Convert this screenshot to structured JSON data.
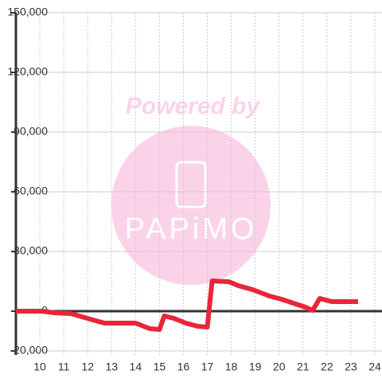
{
  "chart_data": {
    "type": "line",
    "watermark": {
      "line1": "Powered by",
      "line2": "PAPiMO"
    },
    "x": [
      9,
      10.1,
      10.6,
      11.3,
      12.1,
      12.7,
      14,
      14.6,
      15,
      15.2,
      15.6,
      16.1,
      16.6,
      17,
      17.2,
      17.9,
      18.3,
      18.9,
      19.6,
      20.1,
      20.6,
      21.1,
      21.4,
      21.7,
      22.2,
      23.3
    ],
    "series": [
      {
        "color": "#e8263b",
        "values": [
          0,
          0,
          -800,
          -1200,
          -4000,
          -6000,
          -6000,
          -8800,
          -9200,
          -2400,
          -3600,
          -6000,
          -7600,
          -8000,
          15200,
          14800,
          12800,
          10800,
          7600,
          6000,
          4000,
          2000,
          400,
          6400,
          4800,
          4800
        ]
      }
    ],
    "xlim": [
      9,
      24.3
    ],
    "xticks": [
      10,
      11,
      12,
      13,
      14,
      15,
      16,
      17,
      18,
      19,
      20,
      21,
      22,
      23,
      24
    ],
    "ylim": [
      -22000,
      150000
    ],
    "yticks": [
      {
        "value": -20000,
        "label": "-20,000"
      },
      0,
      {
        "value": 30000,
        "label": "30,000"
      },
      {
        "value": 60000,
        "label": "60,000"
      },
      {
        "value": 90000,
        "label": "90,000"
      },
      {
        "value": 120000,
        "label": "120,000"
      },
      {
        "value": 150000,
        "label": "150,000"
      }
    ],
    "grid": true
  }
}
